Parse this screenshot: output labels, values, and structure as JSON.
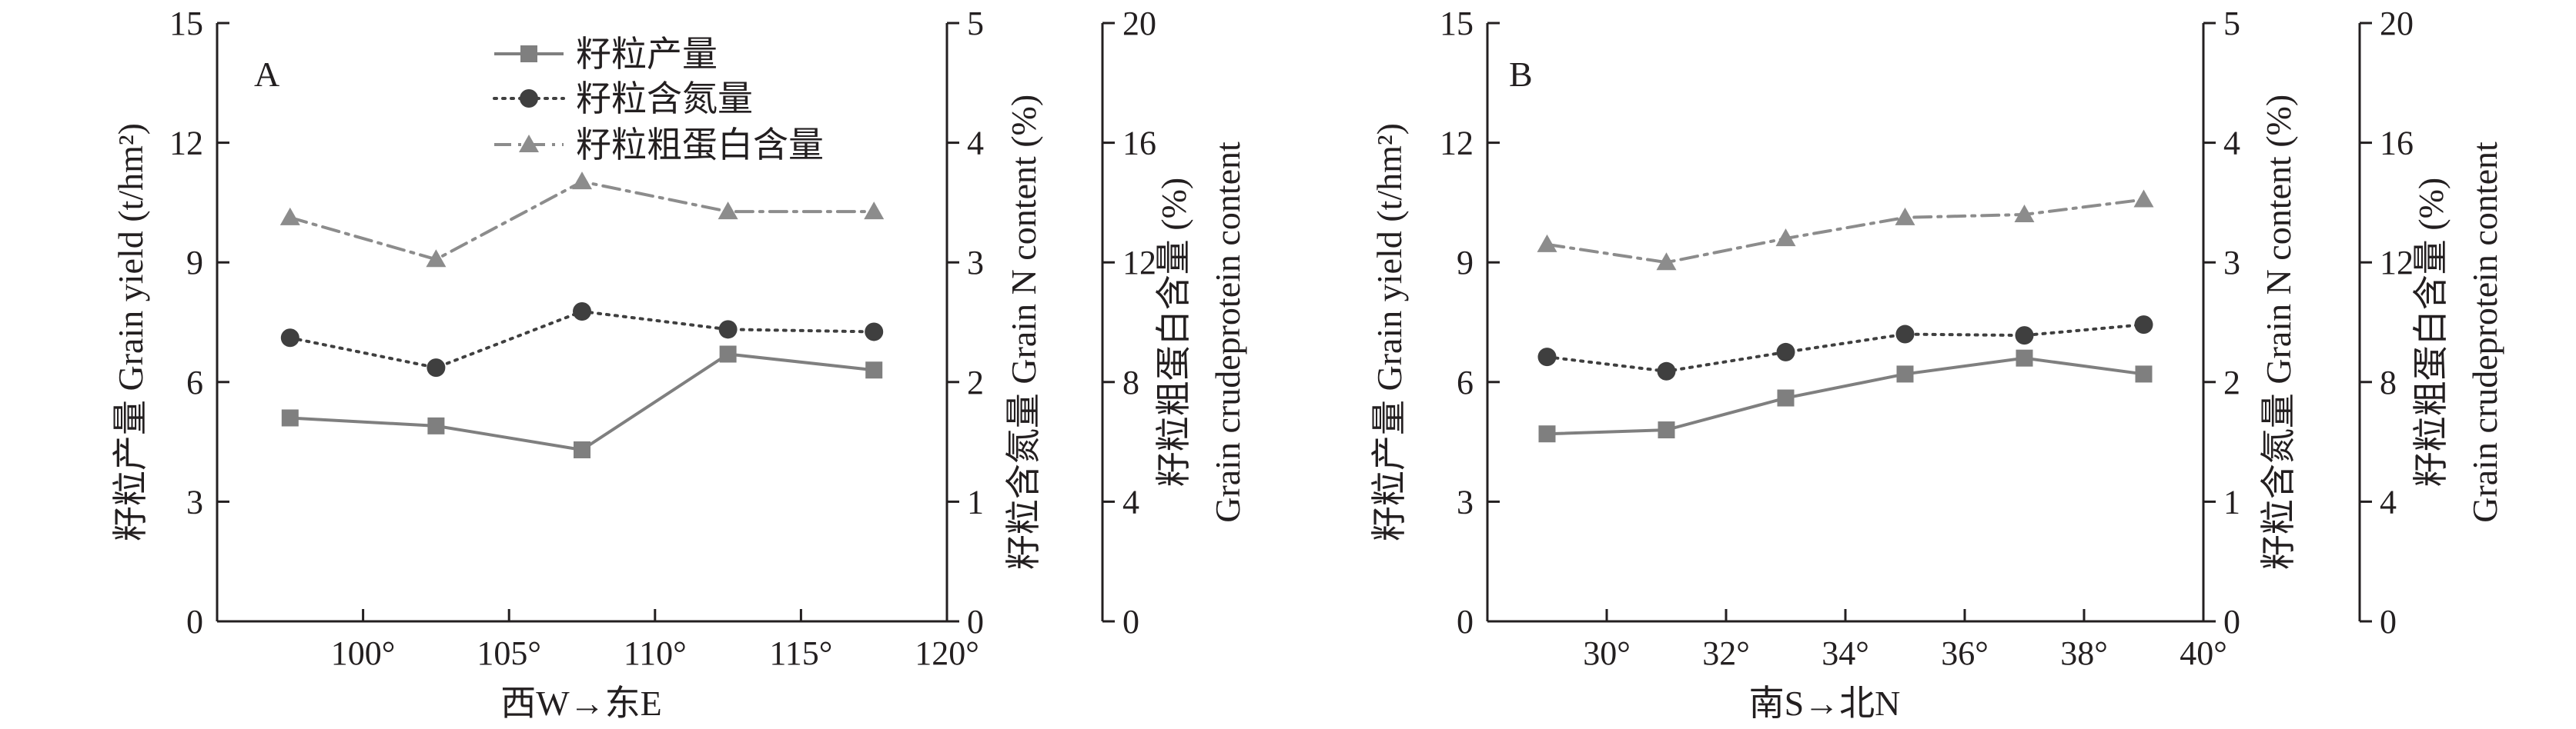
{
  "chart_data": [
    {
      "type": "line",
      "panel_label": "A",
      "xlabel": "西W→东E",
      "x_ticks": [
        "100°",
        "105°",
        "110°",
        "115°",
        "120°"
      ],
      "x_tick_values": [
        100,
        105,
        110,
        115,
        120
      ],
      "xlim": [
        95,
        120
      ],
      "ylabel_left": "籽粒产量 Grain yield (t/hm²)",
      "ylim_left": [
        0,
        15
      ],
      "yticks_left": [
        "0",
        "3",
        "6",
        "9",
        "12",
        "15"
      ],
      "ylabel_right1": "籽粒含氮量 Grain N content (%)",
      "ylim_right1": [
        0,
        5
      ],
      "yticks_right1": [
        "0",
        "1",
        "2",
        "3",
        "4",
        "5"
      ],
      "ylabel_right2_line1": "籽粒粗蛋白含量 (%)",
      "ylabel_right2_line2": "Grain crudeprotein content",
      "ylim_right2": [
        0,
        20
      ],
      "yticks_right2": [
        "0",
        "4",
        "8",
        "12",
        "16",
        "20"
      ],
      "x": [
        97.5,
        102.5,
        107.5,
        112.5,
        117.5
      ],
      "series": [
        {
          "name": "籽粒产量",
          "axis": "left",
          "marker": "square",
          "dash": "solid",
          "values": [
            5.1,
            4.9,
            4.3,
            6.7,
            6.3
          ]
        },
        {
          "name": "籽粒含氮量",
          "axis": "right1",
          "marker": "circle",
          "dash": "dotted",
          "values": [
            2.37,
            2.12,
            2.59,
            2.44,
            2.42
          ]
        },
        {
          "name": "籽粒粗蛋白含量",
          "axis": "right2",
          "marker": "triangle",
          "dash": "dashdot",
          "values": [
            13.5,
            12.1,
            14.7,
            13.7,
            13.7
          ]
        }
      ],
      "legend": {
        "position": "top",
        "entries": [
          "籽粒产量",
          "籽粒含氮量",
          "籽粒粗蛋白含量"
        ]
      }
    },
    {
      "type": "line",
      "panel_label": "B",
      "xlabel": "南S→北N",
      "x_ticks": [
        "30°",
        "32°",
        "34°",
        "36°",
        "38°",
        "40°"
      ],
      "x_tick_values": [
        30,
        32,
        34,
        36,
        38,
        40
      ],
      "xlim": [
        28,
        40
      ],
      "ylabel_left": "籽粒产量 Grain yield (t/hm²)",
      "ylim_left": [
        0,
        15
      ],
      "yticks_left": [
        "0",
        "3",
        "6",
        "9",
        "12",
        "15"
      ],
      "ylabel_right1": "籽粒含氮量 Grain N content (%)",
      "ylim_right1": [
        0,
        5
      ],
      "yticks_right1": [
        "0",
        "1",
        "2",
        "3",
        "4",
        "5"
      ],
      "ylabel_right2_line1": "籽粒粗蛋白含量 (%)",
      "ylabel_right2_line2": "Grain crudeprotein content",
      "ylim_right2": [
        0,
        20
      ],
      "yticks_right2": [
        "0",
        "4",
        "8",
        "12",
        "16",
        "20"
      ],
      "x": [
        29,
        31,
        33,
        35,
        37,
        39
      ],
      "series": [
        {
          "name": "籽粒产量",
          "axis": "left",
          "marker": "square",
          "dash": "solid",
          "values": [
            4.7,
            4.8,
            5.6,
            6.2,
            6.6,
            6.2
          ]
        },
        {
          "name": "籽粒含氮量",
          "axis": "right1",
          "marker": "circle",
          "dash": "dotted",
          "values": [
            2.21,
            2.09,
            2.25,
            2.4,
            2.39,
            2.48
          ]
        },
        {
          "name": "籽粒粗蛋白含量",
          "axis": "right2",
          "marker": "triangle",
          "dash": "dashdot",
          "values": [
            12.6,
            12.0,
            12.8,
            13.5,
            13.6,
            14.1
          ]
        }
      ]
    }
  ],
  "colors": {
    "axis": "#231f20",
    "yield": "#7f7f7f",
    "nitrogen": "#3f3f3f",
    "protein": "#8c8c8c"
  }
}
